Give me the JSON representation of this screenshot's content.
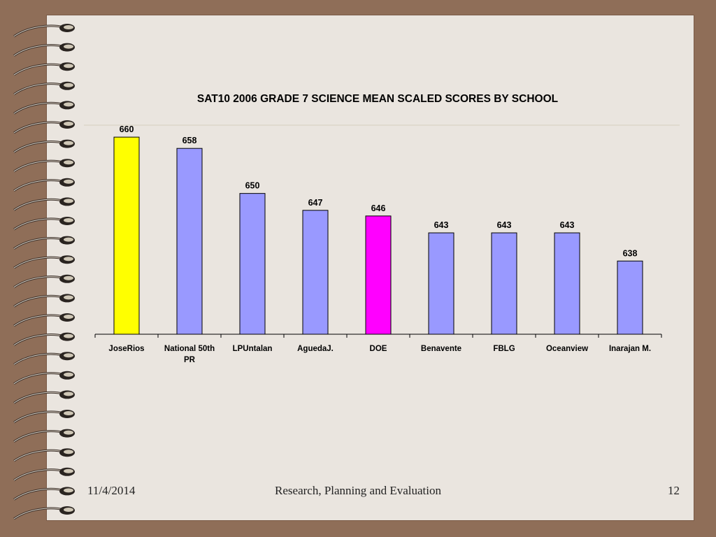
{
  "chart_data": {
    "type": "bar",
    "title": "SAT10 2006 GRADE 7 SCIENCE MEAN SCALED SCORES BY SCHOOL",
    "categories": [
      "JoseRios",
      "National 50th PR",
      "LPUntalan",
      "AguedaJ.",
      "DOE",
      "Benavente",
      "FBLG",
      "Oceanview",
      "Inarajan M."
    ],
    "category_lines": [
      [
        "JoseRios"
      ],
      [
        "National 50th",
        "PR"
      ],
      [
        "LPUntalan"
      ],
      [
        "AguedaJ."
      ],
      [
        "DOE"
      ],
      [
        "Benavente"
      ],
      [
        "FBLG"
      ],
      [
        "Oceanview"
      ],
      [
        "Inarajan M."
      ]
    ],
    "values": [
      660,
      658,
      650,
      647,
      646,
      643,
      643,
      643,
      638
    ],
    "bar_colors": [
      "#ffff00",
      "#9999ff",
      "#9999ff",
      "#9999ff",
      "#ff00ff",
      "#9999ff",
      "#9999ff",
      "#9999ff",
      "#9999ff"
    ],
    "data_labels": true,
    "ylim": [
      625,
      662
    ],
    "grid": false,
    "legend": "none"
  },
  "footer": {
    "date": "11/4/2014",
    "center": "Research, Planning and Evaluation",
    "page": "12"
  },
  "colors": {
    "background": "#8f6e58",
    "slide": "#eae5df",
    "bar_outline": "#000000"
  }
}
